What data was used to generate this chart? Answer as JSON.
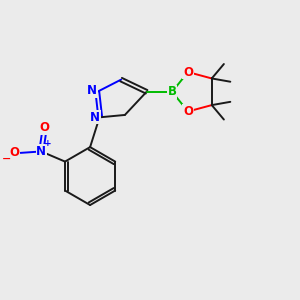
{
  "background_color": "#ebebeb",
  "atom_colors": {
    "C": "#1a1a1a",
    "N": "#0000ff",
    "O": "#ff0000",
    "B": "#00bb00"
  },
  "figsize": [
    3.0,
    3.0
  ],
  "dpi": 100,
  "lw": 1.4
}
